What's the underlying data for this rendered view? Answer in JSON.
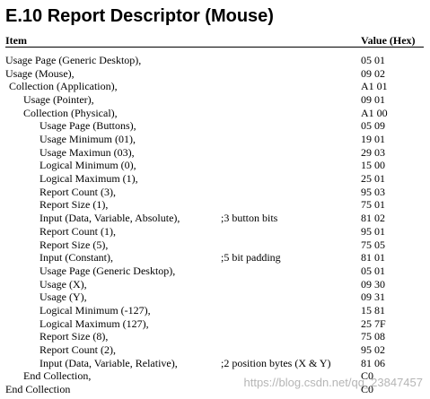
{
  "title": "E.10 Report Descriptor (Mouse)",
  "table": {
    "headers": [
      "Item",
      "Value (Hex)"
    ],
    "rows": [
      {
        "item": "Usage Page (Generic Desktop),",
        "value": "05 01"
      },
      {
        "item": "Usage (Mouse),",
        "value": "09 02"
      },
      {
        "item": "Collection (Application),",
        "value": "A1 01"
      },
      {
        "item": "Usage (Pointer),",
        "value": "09 01"
      },
      {
        "item": "Collection (Physical),",
        "value": "A1 00"
      },
      {
        "item": "Usage Page (Buttons),",
        "value": "05 09"
      },
      {
        "item": "Usage Minimum (01),",
        "value": "19 01"
      },
      {
        "item": "Usage Maximun (03),",
        "value": "29 03"
      },
      {
        "item": "Logical Minimum (0),",
        "value": "15 00"
      },
      {
        "item": "Logical Maximum (1),",
        "value": "25 01"
      },
      {
        "item": "Report Count (3),",
        "value": "95 03"
      },
      {
        "item": "Report Size (1),",
        "value": "75 01"
      },
      {
        "item": "Input (Data, Variable, Absolute),",
        "comment": ";3 button bits",
        "value": "81 02"
      },
      {
        "item": "Report Count (1),",
        "value": "95 01"
      },
      {
        "item": "Report Size (5),",
        "value": "75 05"
      },
      {
        "item": "Input (Constant),",
        "comment": ";5 bit padding",
        "value": "81 01"
      },
      {
        "item": "Usage Page (Generic Desktop),",
        "value": "05 01"
      },
      {
        "item": "Usage (X),",
        "value": "09 30"
      },
      {
        "item": "Usage (Y),",
        "value": "09 31"
      },
      {
        "item": "Logical Minimum (-127),",
        "value": "15 81"
      },
      {
        "item": "Logical Maximum (127),",
        "value": "25 7F"
      },
      {
        "item": "Report Size (8),",
        "value": "75 08"
      },
      {
        "item": "Report Count (2),",
        "value": "95 02"
      },
      {
        "item": "Input (Data, Variable, Relative),",
        "comment": ";2 position bytes (X & Y)",
        "value": "81 06"
      },
      {
        "item": "End Collection,",
        "value": "C0"
      },
      {
        "item": "End Collection",
        "value": "C0"
      }
    ]
  },
  "watermark": "https://blog.csdn.net/qq_23847457"
}
